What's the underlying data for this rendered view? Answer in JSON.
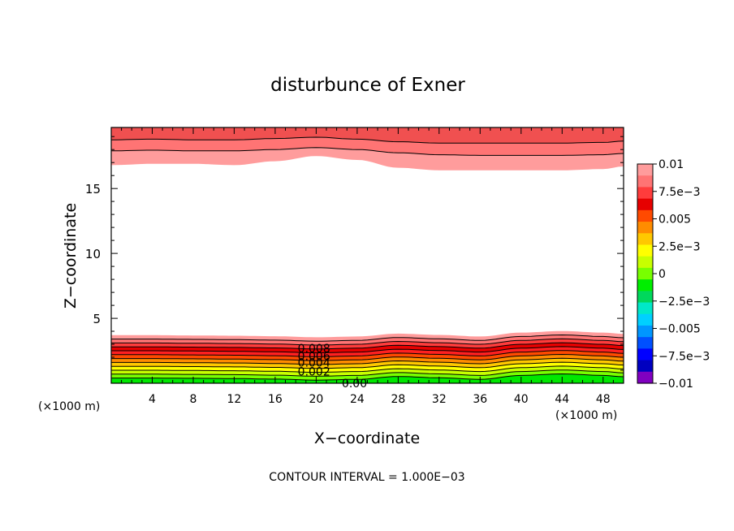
{
  "chart_data": {
    "type": "contour",
    "title": "disturbunce of Exner",
    "xlabel": "X−coordinate",
    "ylabel": "Z−coordinate",
    "x_unit": "(×1000 m)",
    "y_unit": "(×1000 m)",
    "footer": "CONTOUR INTERVAL = 1.000E−03",
    "xlim": [
      0,
      50
    ],
    "ylim": [
      0,
      19.7
    ],
    "x_ticks": [
      4,
      8,
      12,
      16,
      20,
      24,
      28,
      32,
      36,
      40,
      44,
      48
    ],
    "x_tick_labels": [
      "4",
      "8",
      "12",
      "16",
      "20",
      "24",
      "28",
      "32",
      "36",
      "40",
      "44",
      "48"
    ],
    "y_ticks": [
      5,
      10,
      15
    ],
    "y_tick_labels": [
      "5",
      "10",
      "15"
    ],
    "contour_interval": 0.001,
    "contour_labels": [
      {
        "text": "0.008",
        "x": 18.2,
        "z": 2.7
      },
      {
        "text": "0.006",
        "x": 18.2,
        "z": 2.1
      },
      {
        "text": "0.004",
        "x": 18.2,
        "z": 1.6
      },
      {
        "text": "0.002",
        "x": 18.2,
        "z": 0.9
      },
      {
        "text": "0.00",
        "x": 22.5,
        "z": 0.0
      }
    ],
    "colorbar": {
      "labels": [
        "0.01",
        "7.5e−3",
        "0.005",
        "2.5e−3",
        "0",
        "−2.5e−3",
        "−0.005",
        "−7.5e−3",
        "−0.01"
      ],
      "colors": [
        "#ff9c9c",
        "#ff7474",
        "#ff3c3c",
        "#e60000",
        "#ff4a00",
        "#ff8c00",
        "#ffc800",
        "#ffff00",
        "#c8ff00",
        "#78ff00",
        "#00ee00",
        "#00d85c",
        "#00e8c8",
        "#00d0ff",
        "#0096ff",
        "#0050ff",
        "#0000ff",
        "#0000c0",
        "#8000c0"
      ]
    },
    "bands": {
      "bottom": {
        "x_nodes": [
          0,
          4,
          8,
          12,
          16,
          20,
          24,
          28,
          32,
          36,
          40,
          44,
          48,
          50
        ],
        "base_offset": [
          0.1,
          0.1,
          0.08,
          0.06,
          0.02,
          -0.06,
          0.0,
          0.22,
          0.12,
          0.0,
          0.3,
          0.42,
          0.3,
          0.2
        ],
        "top_edges": [
          0.3,
          0.6,
          0.9,
          1.2,
          1.5,
          1.8,
          2.1,
          2.4,
          2.7,
          3.0,
          3.3,
          3.6
        ],
        "colors": [
          "#00e800",
          "#78ff00",
          "#c8ff00",
          "#ffff00",
          "#ffc800",
          "#ff8c00",
          "#ff4a00",
          "#ff2020",
          "#e60000",
          "#ff3c3c",
          "#ff7474",
          "#ff9c9c"
        ]
      },
      "top": {
        "x_nodes": [
          0,
          4,
          8,
          12,
          16,
          20,
          24,
          28,
          32,
          36,
          40,
          44,
          48,
          50
        ],
        "bottom_edge": [
          16.8,
          16.9,
          16.9,
          16.8,
          17.1,
          17.5,
          17.2,
          16.6,
          16.4,
          16.4,
          16.4,
          16.4,
          16.5,
          16.7
        ],
        "mid_edge": [
          17.9,
          17.95,
          17.9,
          17.9,
          18.0,
          18.15,
          18.0,
          17.75,
          17.6,
          17.55,
          17.55,
          17.55,
          17.6,
          17.7
        ],
        "inner_edge": [
          18.75,
          18.8,
          18.75,
          18.75,
          18.85,
          18.95,
          18.8,
          18.6,
          18.5,
          18.5,
          18.5,
          18.5,
          18.55,
          18.65
        ],
        "colors": [
          "#ff9c9c",
          "#ff7474",
          "#f05050"
        ]
      }
    }
  }
}
